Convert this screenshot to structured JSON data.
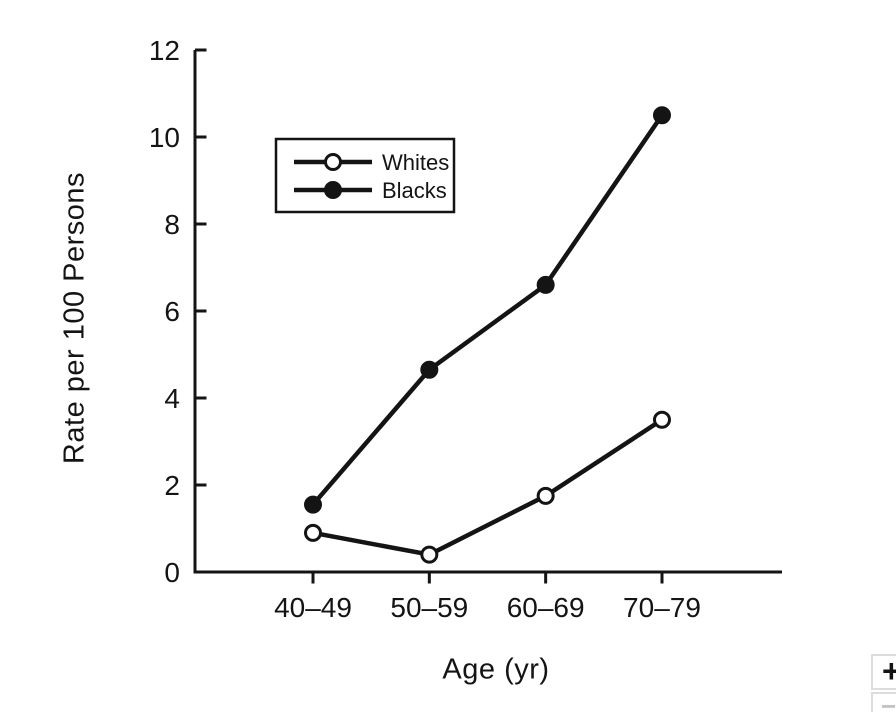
{
  "figure": {
    "background": "#ffffff",
    "ink_color": "#141414"
  },
  "chart_data": {
    "type": "line",
    "title": "",
    "categories": [
      "40–49",
      "50–59",
      "60–69",
      "70–79"
    ],
    "series": [
      {
        "name": "Whites",
        "marker": "open-circle",
        "values": [
          0.9,
          0.4,
          1.75,
          3.5
        ]
      },
      {
        "name": "Blacks",
        "marker": "filled-circle",
        "values": [
          1.55,
          4.65,
          6.6,
          10.5
        ]
      }
    ],
    "xlabel": "Age (yr)",
    "ylabel": "Rate per 100 Persons",
    "ylim": [
      0,
      12
    ],
    "yticks": [
      0,
      2,
      4,
      6,
      8,
      10,
      12
    ],
    "grid": false,
    "legend_position": "upper-left-inside",
    "legend_entries": [
      "Whites",
      "Blacks"
    ]
  },
  "corner_widget": {
    "plus_label": "+",
    "minus_label": "−",
    "border_color": "#dcdcdc",
    "plus_color": "#141414",
    "minus_color": "#c3c3c3"
  }
}
